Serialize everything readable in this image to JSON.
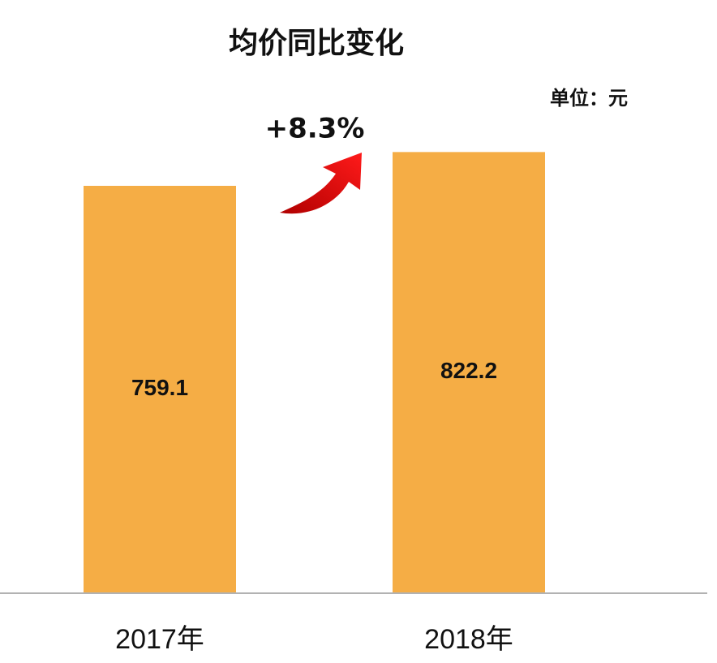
{
  "chart_data": {
    "type": "bar",
    "title": "均价同比变化",
    "unit_label": "单位：元",
    "annotation": "+8.3%",
    "categories": [
      "2017年",
      "2018年"
    ],
    "values": [
      759.1,
      822.2
    ],
    "color": "#f5ad45",
    "ylim": [
      0,
      900
    ]
  }
}
